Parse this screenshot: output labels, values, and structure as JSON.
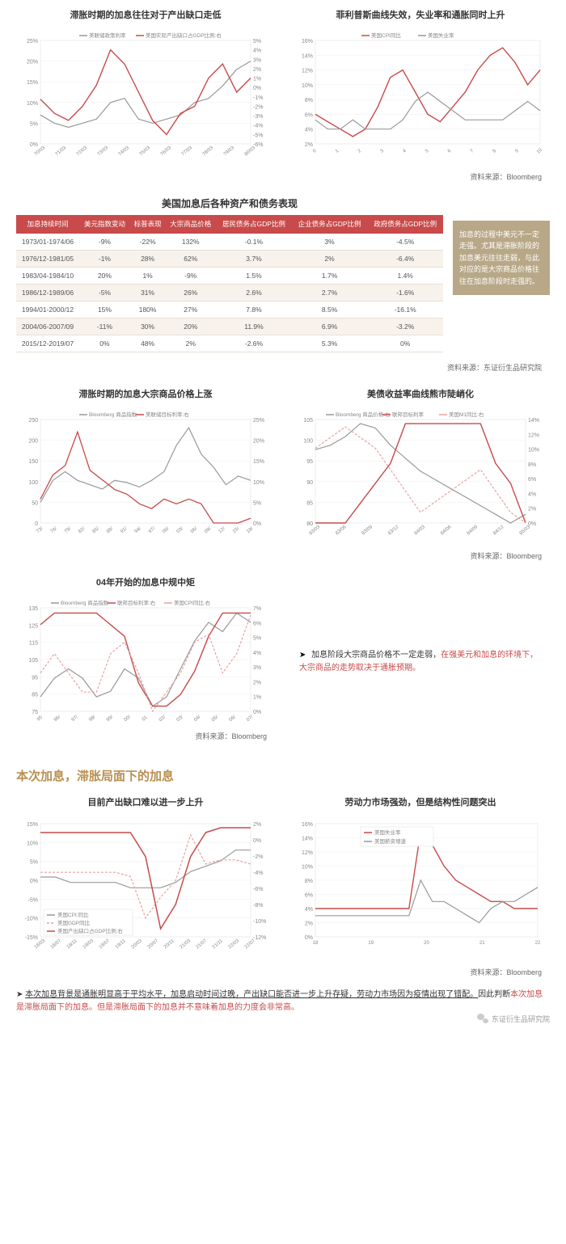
{
  "colors": {
    "red": "#c84a4a",
    "gray": "#999999",
    "lightgray": "#cccccc",
    "grid": "#e8e8e8",
    "gold": "#b89050",
    "callout_bg": "#b8a888",
    "header_bg": "#c84a4a"
  },
  "chart1": {
    "title": "滞胀时期的加息往往对于产出缺口走低",
    "legend": [
      "美联储政策利率",
      "美国实际产出缺口占GDP比例:右"
    ],
    "legend_colors": [
      "#999999",
      "#c84a4a"
    ],
    "y_left": {
      "min": 0,
      "max": 25,
      "step": 5,
      "suffix": "%"
    },
    "y_right": {
      "min": -6,
      "max": 5,
      "step": 1,
      "suffix": "%"
    },
    "x_labels": [
      "70/03",
      "71/03",
      "72/03",
      "73/03",
      "74/03",
      "75/03",
      "76/03",
      "77/03",
      "78/03",
      "79/03",
      "80/03"
    ],
    "series_gray": [
      7,
      5,
      4,
      5,
      6,
      10,
      11,
      6,
      5,
      6,
      7,
      10,
      11,
      14,
      18,
      20
    ],
    "series_red": [
      15,
      13,
      12,
      14,
      17,
      22,
      20,
      16,
      12,
      10,
      13,
      14,
      18,
      20,
      16,
      18
    ]
  },
  "chart2": {
    "title": "菲利普斯曲线失效，失业率和通胀同时上升",
    "legend": [
      "美国CPI同比",
      "美国失业率"
    ],
    "legend_colors": [
      "#c84a4a",
      "#999999"
    ],
    "y_left": {
      "min": 2,
      "max": 16,
      "step": 2,
      "suffix": "%"
    },
    "x_labels": [
      "0",
      "1",
      "2",
      "3",
      "4",
      "5",
      "6",
      "7",
      "8",
      "9",
      "10"
    ],
    "series_red": [
      6,
      5,
      4,
      3,
      4,
      7,
      11,
      12,
      9,
      6,
      5,
      7,
      9,
      12,
      14,
      15,
      13,
      10,
      12
    ],
    "series_gray": [
      6,
      5,
      5,
      6,
      5,
      5,
      5,
      6,
      8,
      9,
      8,
      7,
      6,
      6,
      6,
      6,
      7,
      8,
      7
    ]
  },
  "source_bloomberg": "资料来源：Bloomberg",
  "source_dongzheng": "资料来源：东证衍生品研究院",
  "table": {
    "title": "美国加息后各种资产和债务表现",
    "columns": [
      "加息持续时间",
      "美元指数变动",
      "标普表现",
      "大宗商品价格",
      "居民债务占GDP比例",
      "企业债务占GDP比例",
      "政府债务占GDP比例"
    ],
    "rows": [
      [
        "1973/01-1974/06",
        "-9%",
        "-22%",
        "132%",
        "-0.1%",
        "3%",
        "-4.5%"
      ],
      [
        "1976/12-1981/05",
        "-1%",
        "28%",
        "62%",
        "3.7%",
        "2%",
        "-6.4%"
      ],
      [
        "1983/04-1984/10",
        "20%",
        "1%",
        "-9%",
        "1.5%",
        "1.7%",
        "1.4%"
      ],
      [
        "1986/12-1989/06",
        "-5%",
        "31%",
        "26%",
        "2.6%",
        "2.7%",
        "-1.6%"
      ],
      [
        "1994/01-2000/12",
        "15%",
        "180%",
        "27%",
        "7.8%",
        "8.5%",
        "-16.1%"
      ],
      [
        "2004/06-2007/09",
        "-11%",
        "30%",
        "20%",
        "11.9%",
        "6.9%",
        "-3.2%"
      ],
      [
        "2015/12-2019/07",
        "0%",
        "48%",
        "2%",
        "-2.6%",
        "5.3%",
        "0%"
      ]
    ]
  },
  "callout": "加息的过程中美元不一定走强。尤其是滞胀阶段的加息美元往往走弱，与此对应的是大宗商品价格往往在加息阶段时走强的。",
  "chart3": {
    "title": "滞胀时期的加息大宗商品价格上涨",
    "legend": [
      "Bloomberg 商品指数",
      "美联储目标利率:右"
    ],
    "legend_colors": [
      "#999999",
      "#c84a4a"
    ],
    "y_left": {
      "min": 0,
      "max": 250,
      "step": 50
    },
    "y_right": {
      "min": 0,
      "max": 25,
      "step": 5,
      "suffix": "%"
    },
    "x_labels": [
      "73/",
      "76/",
      "79/",
      "82/",
      "85/",
      "88/",
      "91/",
      "94/",
      "97/",
      "00/",
      "03/",
      "06/",
      "09/",
      "12/",
      "15/",
      "18/"
    ],
    "series_gray": [
      50,
      100,
      120,
      100,
      90,
      80,
      100,
      95,
      85,
      100,
      120,
      180,
      220,
      160,
      130,
      90,
      110,
      100
    ],
    "series_red": [
      60,
      110,
      130,
      200,
      120,
      100,
      80,
      70,
      50,
      40,
      60,
      50,
      60,
      50,
      10,
      10,
      10,
      20
    ]
  },
  "chart4": {
    "title": "美债收益率曲线熊市陡峭化",
    "legend": [
      "Bloomberg 商品价格:右",
      "联邦目标利率",
      "美国M1同比:右"
    ],
    "legend_colors": [
      "#999999",
      "#c84a4a",
      "#e8a0a0"
    ],
    "y_left": {
      "min": 80,
      "max": 105,
      "step": 5
    },
    "y_right": {
      "min": 0,
      "max": 14,
      "step": 2,
      "suffix": "%"
    },
    "x_labels": [
      "83/03",
      "83/06",
      "83/09",
      "83/12",
      "84/03",
      "84/06",
      "84/09",
      "84/12",
      "85/03"
    ],
    "series_gray": [
      97,
      98,
      100,
      103,
      102,
      98,
      95,
      92,
      90,
      88,
      86,
      84,
      82,
      80,
      82
    ],
    "series_red_solid": [
      95,
      95,
      95,
      96,
      97,
      98,
      100,
      100,
      100,
      100,
      100,
      100,
      98,
      97,
      95
    ],
    "series_red_dash": [
      102,
      103,
      104,
      103,
      102,
      100,
      98,
      96,
      97,
      98,
      99,
      100,
      98,
      96,
      95
    ]
  },
  "chart5": {
    "title": "04年开始的加息中规中矩",
    "legend": [
      "Bloomberg 商品指数",
      "联邦目标利率:右",
      "美国CPI同比:右"
    ],
    "legend_colors": [
      "#999999",
      "#c84a4a",
      "#e8a0a0"
    ],
    "y_left": {
      "min": 75,
      "max": 135,
      "step": 10
    },
    "y_right": {
      "min": 0,
      "max": 7,
      "step": 1,
      "suffix": "%"
    },
    "x_labels": [
      "95",
      "96/",
      "97/",
      "98/",
      "99/",
      "00/",
      "01",
      "02/",
      "03/",
      "04/",
      "05/",
      "06/",
      "07/"
    ],
    "series_gray": [
      85,
      95,
      100,
      95,
      85,
      88,
      100,
      95,
      80,
      85,
      100,
      115,
      125,
      120,
      130,
      125
    ],
    "series_red_solid": [
      120,
      125,
      125,
      125,
      125,
      120,
      115,
      95,
      85,
      85,
      90,
      100,
      115,
      125,
      125,
      125
    ],
    "series_red_dash": [
      100,
      105,
      100,
      95,
      95,
      105,
      108,
      100,
      90,
      95,
      100,
      108,
      110,
      100,
      105,
      115
    ]
  },
  "annotation1": {
    "bullet": "➤",
    "text_black": "加息阶段大宗商品价格不一定走弱，",
    "text_red": "在强美元和加息的环境下，大宗商品的走势取决于通胀预期。"
  },
  "heading": "本次加息，滞胀局面下的加息",
  "chart6": {
    "title": "目前产出缺口难以进一步上升",
    "legend": [
      "美国CPI:同比",
      "美国GDP同比",
      "美国产出缺口占GDP比例:右"
    ],
    "legend_colors": [
      "#999999",
      "#e8a0a0",
      "#c84a4a"
    ],
    "y_left": {
      "min": -15,
      "max": 15,
      "step": 5,
      "suffix": "%"
    },
    "y_right": {
      "min": -12,
      "max": 2,
      "step": 2,
      "suffix": "%"
    },
    "x_labels": [
      "18/03",
      "18/07",
      "18/11",
      "19/03",
      "19/07",
      "19/11",
      "20/03",
      "20/07",
      "20/11",
      "21/03",
      "21/07",
      "21/11",
      "22/03",
      "22/07"
    ],
    "series_gray": [
      3,
      3,
      2,
      2,
      2,
      2,
      1,
      1,
      1,
      2,
      4,
      5,
      6,
      8,
      8
    ],
    "series_red_dash": [
      3,
      3,
      3,
      3,
      3,
      3,
      2,
      -8,
      -3,
      1,
      12,
      5,
      6,
      6,
      5
    ],
    "series_red_solid": [
      10,
      10,
      10,
      10,
      10,
      10,
      10,
      5,
      -10,
      -5,
      5,
      10,
      11,
      11,
      11
    ]
  },
  "chart7": {
    "title": "劳动力市场强劲，但是结构性问题突出",
    "legend": [
      "美国失业率",
      "美国薪资增速"
    ],
    "legend_colors": [
      "#c84a4a",
      "#999999"
    ],
    "y_left": {
      "min": 0,
      "max": 16,
      "step": 2,
      "suffix": "%"
    },
    "x_labels": [
      "18",
      "",
      "",
      "",
      "19",
      "",
      "",
      "",
      "20",
      "",
      "",
      "",
      "21",
      "",
      "",
      "",
      "22"
    ],
    "series_red": [
      4,
      4,
      4,
      4,
      4,
      4,
      4,
      4,
      4,
      15,
      13,
      10,
      8,
      7,
      6,
      5,
      5,
      4,
      4,
      4
    ],
    "series_gray": [
      3,
      3,
      3,
      3,
      3,
      3,
      3,
      3,
      3,
      8,
      5,
      5,
      4,
      3,
      2,
      4,
      5,
      5,
      6,
      7
    ]
  },
  "bottom_annotation": {
    "bullet": "➤",
    "parts": [
      {
        "text": "本次加息背景是通胀明显高于平均水平，加息启动时间过晚，产出缺口能否进一步上升存疑，劳动力市场因为疫情出现了错配。",
        "color": "black",
        "underline": true
      },
      {
        "text": "因此判断",
        "color": "black"
      },
      {
        "text": "本次加息是滞胀局面下的加息。但是滞胀局面下的加息并不意味着加息的力度会非常高。",
        "color": "red"
      }
    ]
  },
  "footer": "东证衍生品研究院"
}
